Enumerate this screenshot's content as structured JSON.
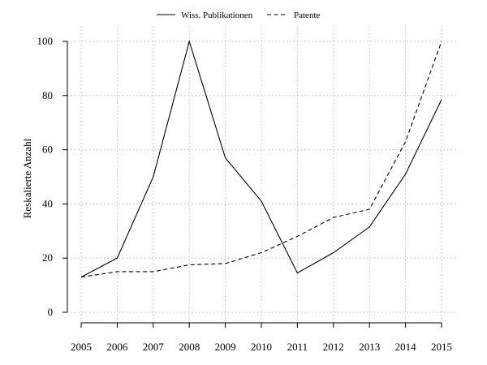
{
  "chart_data": {
    "type": "line",
    "title": "",
    "xlabel": "",
    "ylabel": "Reskalierte Anzahl",
    "x": [
      2005,
      2006,
      2007,
      2008,
      2009,
      2010,
      2011,
      2012,
      2013,
      2014,
      2015
    ],
    "x_tick_labels": [
      "2005",
      "2006",
      "2007",
      "2008",
      "2009",
      "2010",
      "2011",
      "2012",
      "2013",
      "2014",
      "2015"
    ],
    "y_ticks": [
      0,
      20,
      40,
      60,
      80,
      100
    ],
    "y_tick_labels": [
      "0",
      "20",
      "40",
      "60",
      "80",
      "100"
    ],
    "xlim": [
      2005,
      2015
    ],
    "ylim": [
      -4,
      104
    ],
    "grid": true,
    "legend_position": "top-center",
    "series": [
      {
        "name": "Wiss. Publikationen",
        "line_style": "solid",
        "color": "#000000",
        "values": [
          13,
          20,
          50,
          100,
          57,
          41,
          14.5,
          22,
          31.5,
          51,
          78.5
        ]
      },
      {
        "name": "Patente",
        "line_style": "dashed",
        "color": "#000000",
        "values": [
          13,
          15,
          15,
          17.5,
          18,
          22,
          28,
          35,
          38,
          63,
          100
        ]
      }
    ]
  }
}
